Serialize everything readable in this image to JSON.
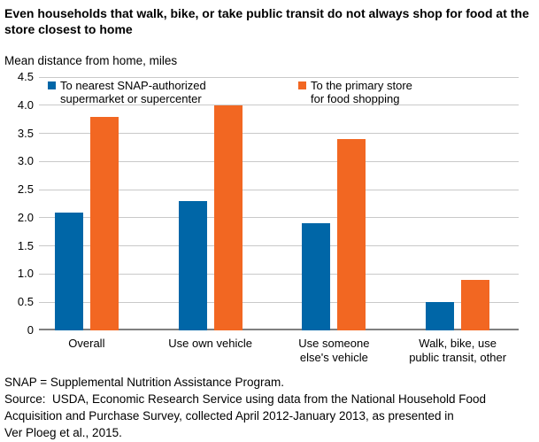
{
  "header": {
    "title": "Even households that walk, bike, or take public transit do not always shop for food at the\nstore closest to home"
  },
  "footer": {
    "note_and_source": "SNAP = Supplemental Nutrition Assistance Program.\nSource:  USDA, Economic Research Service using data from the National Household Food\nAcquisition and Purchase Survey, collected April 2012-January 2013, as presented in\nVer Ploeg et al., 2015."
  },
  "colors": {
    "series1_blue": "#0066A7",
    "series2_orange": "#F26722",
    "gridline": "#c9c9c9",
    "axis_baseline": "#808080",
    "text": "#000000",
    "background": "#ffffff"
  },
  "chart_data": {
    "type": "bar",
    "title": "Even households that walk, bike, or take public transit do not always shop for food at the store closest to home",
    "ylabel": "Mean distance from home, miles",
    "xlabel": "",
    "ylim": [
      0,
      4.5
    ],
    "ytick_step": 0.5,
    "yticks": [
      "0",
      "0.5",
      "1.0",
      "1.5",
      "2.0",
      "2.5",
      "3.0",
      "3.5",
      "4.0",
      "4.5"
    ],
    "grid": true,
    "legend_position": "top-inside",
    "categories": [
      "Overall",
      "Use own vehicle",
      "Use someone\nelse's vehicle",
      "Walk, bike, use\npublic transit, other"
    ],
    "series": [
      {
        "name": "To nearest SNAP-authorized supermarket or supercenter",
        "label": "To nearest SNAP-authorized\nsupermarket or supercenter",
        "color": "#0066A7",
        "values": [
          2.1,
          2.3,
          1.9,
          0.5
        ]
      },
      {
        "name": "To the primary store for food shopping",
        "label": "To the primary store\nfor food shopping",
        "color": "#F26722",
        "values": [
          3.8,
          4.0,
          3.4,
          0.9
        ]
      }
    ]
  }
}
